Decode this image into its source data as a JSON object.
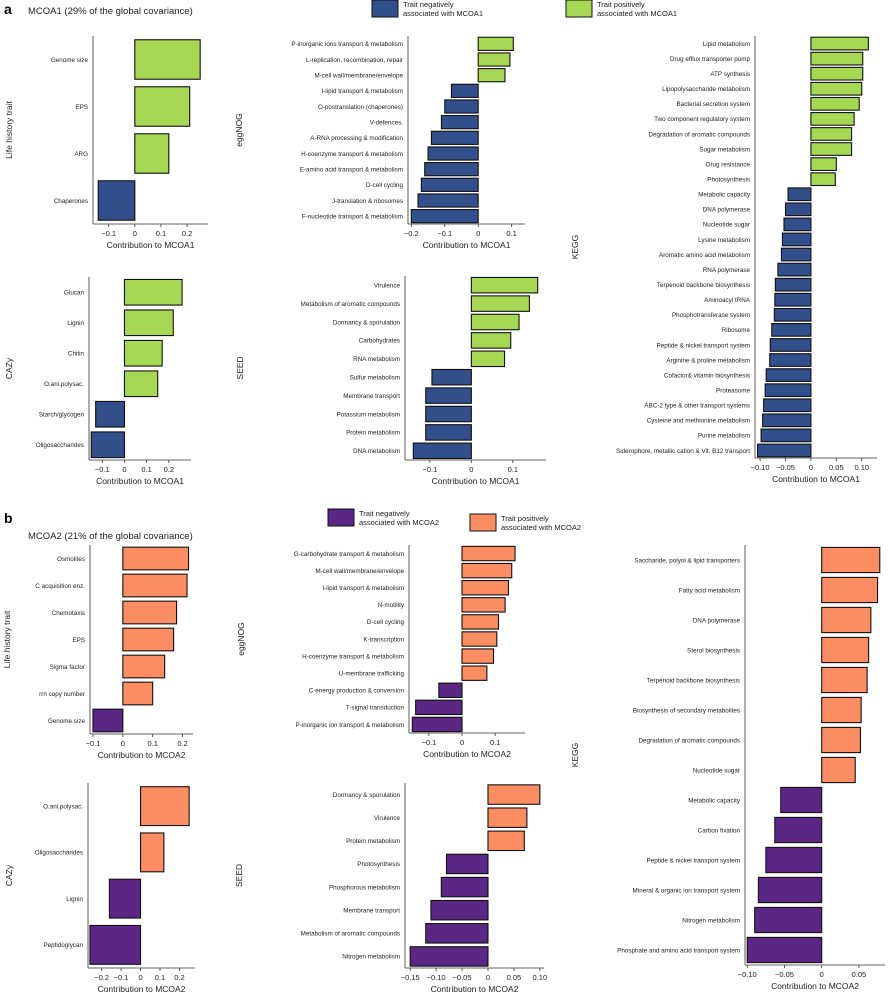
{
  "figure": {
    "panel_a_letter": "a",
    "panel_a_subtitle": "MCOA1 (29% of the global covariance)",
    "panel_b_letter": "b",
    "panel_b_subtitle": "MCOA2 (21% of the global covariance)",
    "legend_a": {
      "negative_label": [
        "Trait negatively",
        "associated with MCOA1"
      ],
      "positive_label": [
        "Trait positively",
        "associated with MCOA1"
      ],
      "negative_color": "#324f8c",
      "positive_color": "#a6d854"
    },
    "legend_b": {
      "negative_label": [
        "Trait negatively",
        "associated with MCOA2"
      ],
      "positive_label": [
        "Trait positively",
        "associated with MCOA2"
      ],
      "negative_color": "#5b2784",
      "positive_color": "#fc8d62"
    }
  },
  "chart_data": [
    {
      "id": "a_lht",
      "panel": "a",
      "type": "bar",
      "orientation": "horizontal",
      "ylabel": "Life history trait",
      "xlabel": "Contribution to MCOA1",
      "xlim": [
        -0.16,
        0.28
      ],
      "xticks": [
        -0.1,
        0,
        0.1,
        0.2
      ],
      "xtick_labels": [
        "−0.1",
        "0",
        "0.1",
        "0.2"
      ],
      "categories": [
        "Genome size",
        "EPS",
        "ARG",
        "Chaperones"
      ],
      "values": [
        0.25,
        0.21,
        0.13,
        -0.14
      ]
    },
    {
      "id": "a_egg",
      "panel": "a",
      "type": "bar",
      "orientation": "horizontal",
      "ylabel": "eggNOG",
      "xlabel": "Contribution to MCOA1",
      "xlim": [
        -0.21,
        0.14
      ],
      "xticks": [
        -0.2,
        -0.1,
        0,
        0.1
      ],
      "xtick_labels": [
        "−0.2",
        "−0.1",
        "0",
        "0.1"
      ],
      "categories": [
        "P-inorganic ions transport & metabolism",
        "L-replication, recombination, repair",
        "M-cell wall/membrane/envelope",
        "I-lipid transport & metabolism",
        "O-postranslation (chaperones)",
        "V-defences.",
        "A-RNA processing & modification",
        "H-coenzyme transport & metabolism",
        "E-amino acid transport & metabolism",
        "D-cell cycling",
        "J-translation & ribosomes",
        "F-nucleotide transport & metabolism"
      ],
      "values": [
        0.105,
        0.095,
        0.08,
        -0.08,
        -0.1,
        -0.11,
        -0.14,
        -0.15,
        -0.16,
        -0.17,
        -0.18,
        -0.2
      ]
    },
    {
      "id": "a_kegg",
      "panel": "a",
      "type": "bar",
      "orientation": "horizontal",
      "ylabel": "KEGG",
      "xlabel": "Contribution to MCOA1",
      "xlim": [
        -0.11,
        0.13
      ],
      "xticks": [
        -0.1,
        -0.05,
        0,
        0.05,
        0.1
      ],
      "xtick_labels": [
        "−0.10",
        "−0.05",
        "0",
        "0.05",
        "0.10"
      ],
      "categories": [
        "Lipid metabolism",
        "Drug efflux transporter pump",
        "ATP synthesis",
        "Lipopolysaccharide metabolism",
        "Bacterial secretion system",
        "Two component regulatory system",
        "Degradation of aromatic compounds",
        "Sugar metabolism",
        "Drug resistance",
        "Photosynthesis",
        "Metabolic capacity",
        "DNA polymerase",
        "Nucleotide sugar",
        "Lysine metabolism",
        "Aromatic amino acid metabolism",
        "RNA polymerase",
        "Terpenoid backbone biosynthesis",
        "Aminoacyl tRNA",
        "Phosphotransferase system",
        "Ribosome",
        "Peptide & nickel transport system",
        "Arginine & proline metabolism",
        "Cofactor& vitamin biosynthesis",
        "Proteasome",
        "ABC-2 type & other transport systems",
        "Cysteine and methionine metabolism",
        "Purine metabolism",
        "Siderophore, metallic cation & Vit. B12 transport"
      ],
      "values": [
        0.113,
        0.102,
        0.102,
        0.1,
        0.095,
        0.085,
        0.08,
        0.08,
        0.05,
        0.048,
        -0.045,
        -0.05,
        -0.053,
        -0.056,
        -0.058,
        -0.065,
        -0.07,
        -0.071,
        -0.072,
        -0.077,
        -0.08,
        -0.081,
        -0.088,
        -0.09,
        -0.093,
        -0.095,
        -0.098,
        -0.105
      ]
    },
    {
      "id": "a_cazy",
      "panel": "a",
      "type": "bar",
      "orientation": "horizontal",
      "ylabel": "CAZy",
      "xlabel": "Contribution to MCOA1",
      "xlim": [
        -0.16,
        0.3
      ],
      "xticks": [
        -0.1,
        0,
        0.1,
        0.2
      ],
      "xtick_labels": [
        "−0.1",
        "0",
        "0.1",
        "0.2"
      ],
      "categories": [
        "Glucan",
        "Lignin",
        "Chitin",
        "O.ani.polysac.",
        "Starch/glycogen",
        "Oligosaccharides"
      ],
      "values": [
        0.26,
        0.22,
        0.17,
        0.15,
        -0.13,
        -0.15
      ]
    },
    {
      "id": "a_seed",
      "panel": "a",
      "type": "bar",
      "orientation": "horizontal",
      "ylabel": "SEED",
      "xlabel": "Contribution to MCOA1",
      "xlim": [
        -0.16,
        0.18
      ],
      "xticks": [
        -0.1,
        0,
        0.1
      ],
      "xtick_labels": [
        "−0.1",
        "0",
        "0.1"
      ],
      "categories": [
        "Virulence",
        "Metabolism of aromatic compounds",
        "Dormancy & sporulation",
        "Carbohydrates",
        "RNA metabolism",
        "Sulfur metabolism",
        "Membrane transport",
        "Potassium metabolism",
        "Protein metabolism",
        "DNA metabolism"
      ],
      "values": [
        0.16,
        0.14,
        0.115,
        0.095,
        0.08,
        -0.095,
        -0.11,
        -0.11,
        -0.11,
        -0.14
      ]
    },
    {
      "id": "b_lht",
      "panel": "b",
      "type": "bar",
      "orientation": "horizontal",
      "ylabel": "Life history trait",
      "xlabel": "Contribution to MCOA2",
      "xlim": [
        -0.11,
        0.235
      ],
      "xticks": [
        -0.1,
        0,
        0.1,
        0.2
      ],
      "xtick_labels": [
        "−0.1",
        "0",
        "0.1",
        "0.2"
      ],
      "categories": [
        "Osmolites",
        "C acquisition enz.",
        "Chemotaxis",
        "EPS",
        "Sigma factor",
        "rrn copy number",
        "Genome size"
      ],
      "values": [
        0.22,
        0.215,
        0.18,
        0.17,
        0.14,
        0.1,
        -0.1
      ]
    },
    {
      "id": "b_egg",
      "panel": "b",
      "type": "bar",
      "orientation": "horizontal",
      "ylabel": "eggNOG",
      "xlabel": "Contribution to MCOA2",
      "xlim": [
        -0.16,
        0.19
      ],
      "xticks": [
        -0.1,
        0,
        0.1
      ],
      "xtick_labels": [
        "−0.1",
        "0",
        "0.1"
      ],
      "categories": [
        "G-carbohydrate transport & metabolism",
        "M-cell wall/membrane/envelope",
        "I-lipid transport & metabolism",
        "N-motility",
        "D-cell cycling",
        "K-transcription",
        "H-coenzyme transport & metabolism",
        "U-membrane trafficking",
        "C-energy production & conversion",
        "T-signal transduction",
        "P-inorganic ion transport & metabolism"
      ],
      "values": [
        0.16,
        0.15,
        0.14,
        0.13,
        0.11,
        0.105,
        0.095,
        0.075,
        -0.07,
        -0.14,
        -0.15
      ]
    },
    {
      "id": "b_kegg",
      "panel": "b",
      "type": "bar",
      "orientation": "horizontal",
      "ylabel": "KEGG",
      "xlabel": "Contribution to MCOA2",
      "xlim": [
        -0.103,
        0.085
      ],
      "xticks": [
        -0.1,
        -0.05,
        0,
        0.05
      ],
      "xtick_labels": [
        "−0.10",
        "−0.05",
        "0",
        "0.05"
      ],
      "categories": [
        "Saccharide, polyol & lipid transporters",
        "Fatty acid metabolism",
        "DNA polymerase",
        "Sterol biosynthesis",
        "Terpenoid backbone biosynthesis",
        "Biosynthesis of secondary metabolites",
        "Degradation of aromatic compounds",
        "Nucleotide sugar",
        "Metabolic capacity",
        "Carbon fixation",
        "Peptide & nickel transport system",
        "Mineral & organic ion transport system",
        "Nitrogen metabolism",
        "Phosphate and amino acid transport system"
      ],
      "values": [
        0.078,
        0.075,
        0.066,
        0.063,
        0.061,
        0.053,
        0.052,
        0.045,
        -0.055,
        -0.063,
        -0.075,
        -0.085,
        -0.09,
        -0.1
      ]
    },
    {
      "id": "b_cazy",
      "panel": "b",
      "type": "bar",
      "orientation": "horizontal",
      "ylabel": "CAZy",
      "xlabel": "Contribution to MCOA2",
      "xlim": [
        -0.27,
        0.28
      ],
      "xticks": [
        -0.2,
        -0.1,
        0,
        0.1,
        0.2
      ],
      "xtick_labels": [
        "−0.2",
        "−0.1",
        "0",
        "0.1",
        "0.2"
      ],
      "categories": [
        "O.ani.polysac.",
        "Oligosaccharides",
        "Lignin",
        "Peptidoglycan"
      ],
      "values": [
        0.25,
        0.12,
        -0.16,
        -0.26
      ]
    },
    {
      "id": "b_seed",
      "panel": "b",
      "type": "bar",
      "orientation": "horizontal",
      "ylabel": "SEED",
      "xlabel": "Contribution to MCOA2",
      "xlim": [
        -0.16,
        0.108
      ],
      "xticks": [
        -0.15,
        -0.1,
        -0.05,
        0,
        0.05,
        0.1
      ],
      "xtick_labels": [
        "−0.15",
        "−0.10",
        "−0.05",
        "0",
        "0.05",
        "0.10"
      ],
      "categories": [
        "Dormancy & sporulation",
        "Virulence",
        "Protein metabolism",
        "Photosynthesis",
        "Phosphorous metabolism",
        "Membrane transport",
        "Metabolism of aromatic compounds",
        "Nitrogen metabolism"
      ],
      "values": [
        0.1,
        0.075,
        0.07,
        -0.08,
        -0.09,
        -0.11,
        -0.12,
        -0.15
      ]
    }
  ]
}
